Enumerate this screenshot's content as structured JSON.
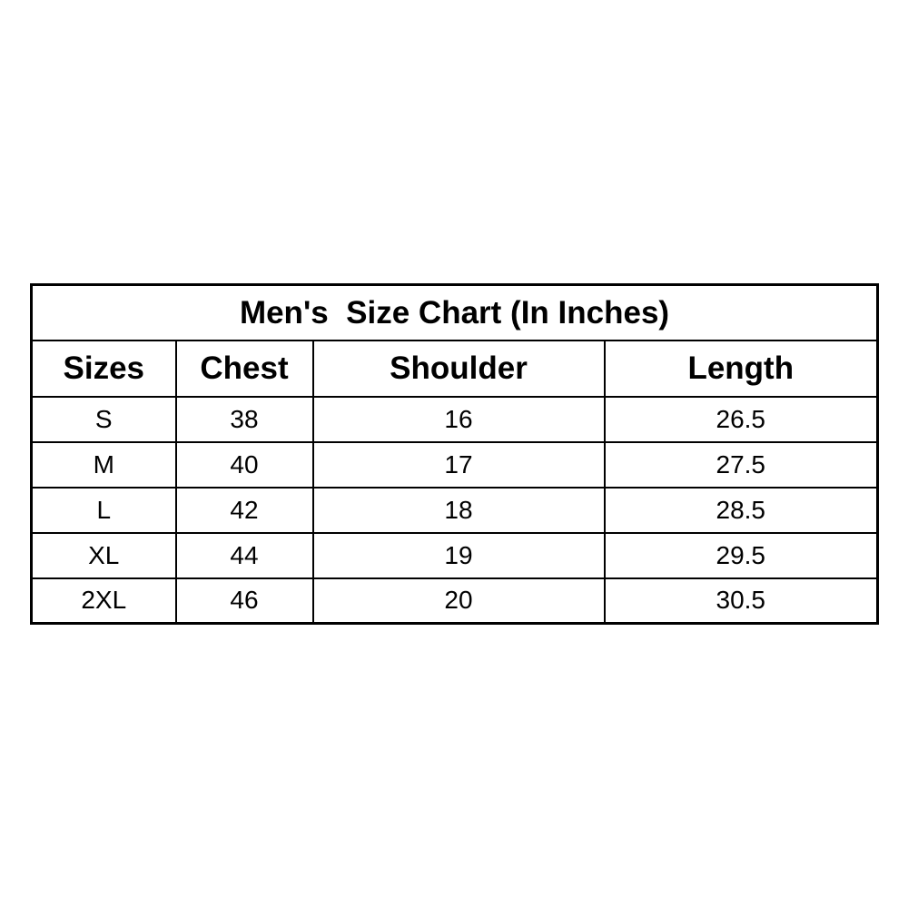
{
  "chart_data": {
    "type": "table",
    "title": "Men's  Size Chart (In Inches)",
    "units": "inches",
    "columns": [
      "Sizes",
      "Chest",
      "Shoulder",
      "Length"
    ],
    "rows": [
      [
        "S",
        "38",
        "16",
        "26.5"
      ],
      [
        "M",
        "40",
        "17",
        "27.5"
      ],
      [
        "L",
        "42",
        "18",
        "28.5"
      ],
      [
        "XL",
        "44",
        "19",
        "29.5"
      ],
      [
        "2XL",
        "46",
        "20",
        "30.5"
      ]
    ]
  },
  "colors": {
    "background": "#ffffff",
    "border": "#000000",
    "text": "#000000"
  }
}
